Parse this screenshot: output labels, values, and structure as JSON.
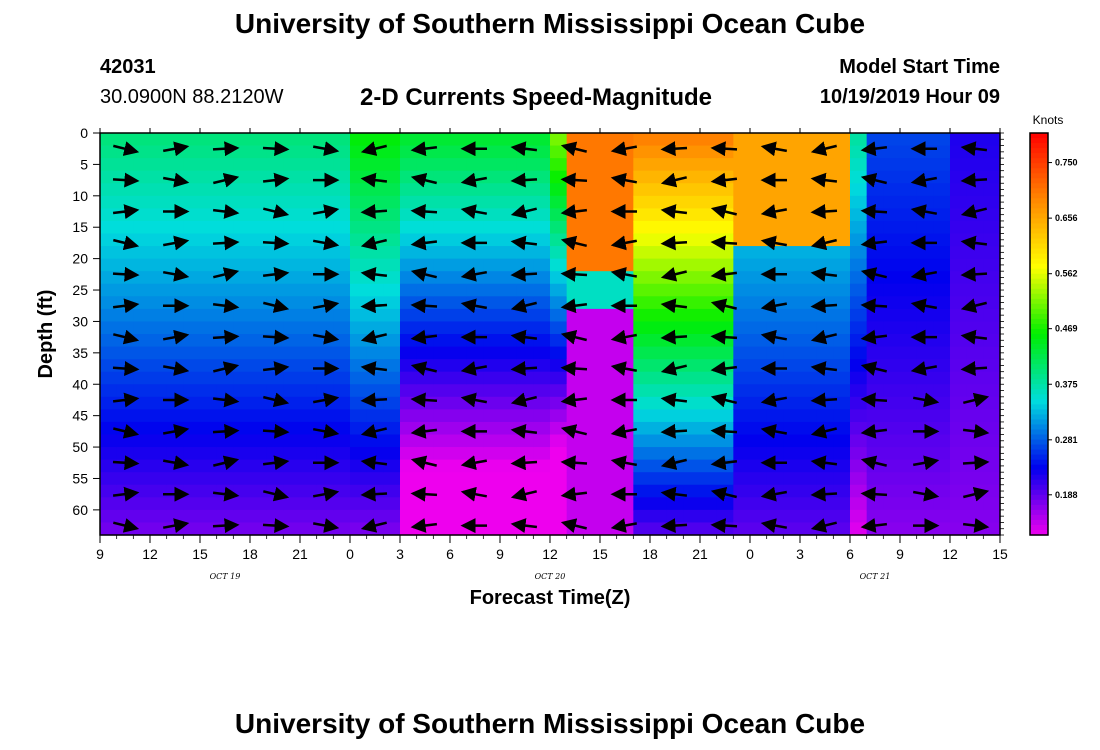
{
  "header": {
    "title": "University of Southern Mississippi Ocean Cube",
    "station_id": "42031",
    "station_coords": "30.0900N 88.2120W",
    "subtitle": "2-D Currents Speed-Magnitude",
    "model_label": "Model Start Time",
    "model_date": "10/19/2019 Hour 09"
  },
  "footer": {
    "title": "University of Southern Mississippi Ocean Cube"
  },
  "chart_data": {
    "type": "heatmap",
    "xlabel": "Forecast Time(Z)",
    "ylabel": "Depth (ft)",
    "x_range_hours": [
      0,
      54
    ],
    "x_tick_labels": [
      "9",
      "12",
      "15",
      "18",
      "21",
      "0",
      "3",
      "6",
      "9",
      "12",
      "15",
      "18",
      "21",
      "0",
      "3",
      "6",
      "9",
      "12",
      "15"
    ],
    "x_date_labels": [
      {
        "label": "OCT 19",
        "hour": 7.5
      },
      {
        "label": "OCT 20",
        "hour": 27
      },
      {
        "label": "OCT 21",
        "hour": 46.5
      }
    ],
    "y_range": [
      0,
      64
    ],
    "y_tick_labels": [
      "0",
      "5",
      "10",
      "15",
      "20",
      "25",
      "30",
      "35",
      "40",
      "45",
      "50",
      "55",
      "60"
    ],
    "colorbar": {
      "unit": "Knots",
      "range": [
        0.12,
        0.8
      ],
      "tick_labels": [
        "0.750",
        "0.656",
        "0.562",
        "0.469",
        "0.375",
        "0.281",
        "0.188"
      ]
    },
    "colors": {
      "c0": "#ee00ee",
      "c1": "#0000ee",
      "c2": "#00dddd",
      "c3": "#00ee00",
      "c4": "#ffff00",
      "c5": "#ff8800",
      "c6": "#ff0000"
    }
  }
}
